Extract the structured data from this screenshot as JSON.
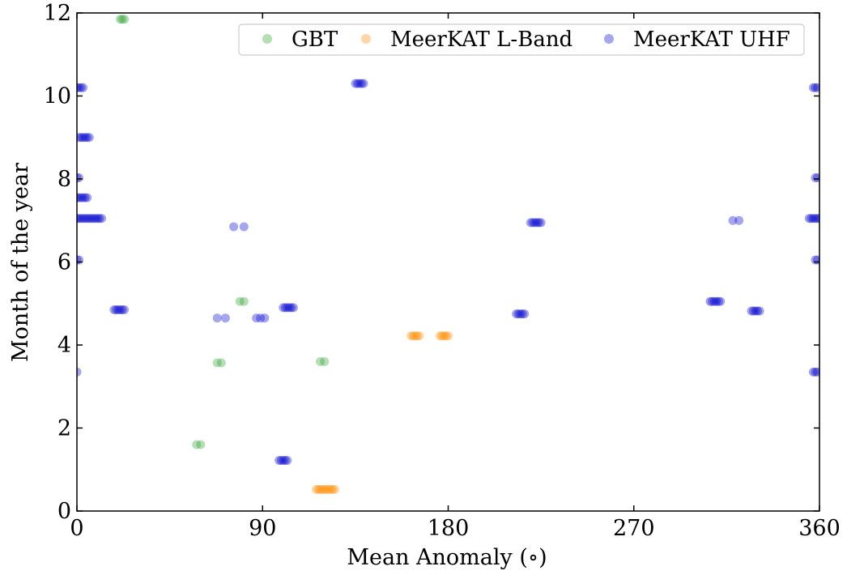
{
  "chart_data": {
    "type": "scatter",
    "xlabel": "Mean Anomaly ($^{\\circ}$)",
    "xlabel_display": "Mean Anomaly (∘)",
    "ylabel": "Month of the year",
    "xlim": [
      0,
      360
    ],
    "ylim": [
      0,
      12
    ],
    "xticks": [
      0,
      90,
      180,
      270,
      360
    ],
    "yticks": [
      0,
      2,
      4,
      6,
      8,
      10,
      12
    ],
    "grid": false,
    "legend_position": "top-right",
    "series": [
      {
        "name": "GBT",
        "color": "#2ca02c",
        "alpha": 0.35,
        "points": [
          [
            21,
            11.85
          ],
          [
            22,
            11.85
          ],
          [
            23,
            11.85
          ],
          [
            58,
            1.6
          ],
          [
            60,
            1.6
          ],
          [
            68,
            3.57
          ],
          [
            70,
            3.57
          ],
          [
            79,
            5.05
          ],
          [
            81,
            5.05
          ],
          [
            118,
            3.6
          ],
          [
            120,
            3.6
          ]
        ]
      },
      {
        "name": "MeerKAT L-Band",
        "color": "#ff8c00",
        "alpha": 0.35,
        "points": [
          [
            116,
            0.52
          ],
          [
            117,
            0.52
          ],
          [
            118,
            0.52
          ],
          [
            119,
            0.52
          ],
          [
            120,
            0.52
          ],
          [
            121,
            0.52
          ],
          [
            122,
            0.52
          ],
          [
            123,
            0.52
          ],
          [
            124,
            0.52
          ],
          [
            125,
            0.52
          ],
          [
            162,
            4.22
          ],
          [
            163,
            4.22
          ],
          [
            164,
            4.22
          ],
          [
            165,
            4.22
          ],
          [
            166,
            4.22
          ],
          [
            176,
            4.22
          ],
          [
            177,
            4.22
          ],
          [
            178,
            4.22
          ],
          [
            179,
            4.22
          ],
          [
            180,
            4.22
          ]
        ]
      },
      {
        "name": "MeerKAT UHF",
        "color": "#0000cd",
        "alpha": 0.35,
        "points": [
          [
            0,
            3.35
          ],
          [
            0,
            6.05
          ],
          [
            1,
            6.05
          ],
          [
            0,
            7.05
          ],
          [
            1,
            7.05
          ],
          [
            2,
            7.05
          ],
          [
            3,
            7.05
          ],
          [
            4,
            7.05
          ],
          [
            5,
            7.05
          ],
          [
            6,
            7.05
          ],
          [
            7,
            7.05
          ],
          [
            8,
            7.05
          ],
          [
            9,
            7.05
          ],
          [
            10,
            7.05
          ],
          [
            11,
            7.05
          ],
          [
            12,
            7.05
          ],
          [
            0,
            7.55
          ],
          [
            1,
            7.55
          ],
          [
            2,
            7.55
          ],
          [
            3,
            7.55
          ],
          [
            4,
            7.55
          ],
          [
            5,
            7.55
          ],
          [
            0,
            8.03
          ],
          [
            1,
            8.03
          ],
          [
            1,
            9.0
          ],
          [
            2,
            9.0
          ],
          [
            3,
            9.0
          ],
          [
            4,
            9.0
          ],
          [
            5,
            9.0
          ],
          [
            6,
            9.0
          ],
          [
            0,
            10.2
          ],
          [
            1,
            10.2
          ],
          [
            2,
            10.2
          ],
          [
            3,
            10.2
          ],
          [
            18,
            4.85
          ],
          [
            19,
            4.85
          ],
          [
            20,
            4.85
          ],
          [
            21,
            4.85
          ],
          [
            22,
            4.85
          ],
          [
            23,
            4.85
          ],
          [
            68,
            4.65
          ],
          [
            72,
            4.65
          ],
          [
            76,
            6.85
          ],
          [
            81,
            6.85
          ],
          [
            87,
            4.65
          ],
          [
            89,
            4.65
          ],
          [
            91,
            4.65
          ],
          [
            98,
            1.22
          ],
          [
            99,
            1.22
          ],
          [
            100,
            1.22
          ],
          [
            101,
            1.22
          ],
          [
            102,
            1.22
          ],
          [
            100,
            4.9
          ],
          [
            101,
            4.9
          ],
          [
            102,
            4.9
          ],
          [
            103,
            4.9
          ],
          [
            104,
            4.9
          ],
          [
            105,
            4.9
          ],
          [
            135,
            10.3
          ],
          [
            136,
            10.3
          ],
          [
            137,
            10.3
          ],
          [
            138,
            10.3
          ],
          [
            139,
            10.3
          ],
          [
            213,
            4.75
          ],
          [
            214,
            4.75
          ],
          [
            215,
            4.75
          ],
          [
            216,
            4.75
          ],
          [
            217,
            4.75
          ],
          [
            220,
            6.95
          ],
          [
            221,
            6.95
          ],
          [
            222,
            6.95
          ],
          [
            223,
            6.95
          ],
          [
            224,
            6.95
          ],
          [
            225,
            6.95
          ],
          [
            307,
            5.05
          ],
          [
            308,
            5.05
          ],
          [
            309,
            5.05
          ],
          [
            310,
            5.05
          ],
          [
            311,
            5.05
          ],
          [
            312,
            5.05
          ],
          [
            318,
            7.0
          ],
          [
            321,
            7.0
          ],
          [
            327,
            4.82
          ],
          [
            328,
            4.82
          ],
          [
            329,
            4.82
          ],
          [
            330,
            4.82
          ],
          [
            331,
            4.82
          ],
          [
            355,
            7.05
          ],
          [
            356,
            7.05
          ],
          [
            357,
            7.05
          ],
          [
            358,
            7.05
          ],
          [
            359,
            7.05
          ],
          [
            360,
            7.05
          ],
          [
            357,
            3.35
          ],
          [
            358,
            3.35
          ],
          [
            359,
            3.35
          ],
          [
            358,
            6.05
          ],
          [
            359,
            6.05
          ],
          [
            358,
            8.03
          ],
          [
            359,
            8.03
          ],
          [
            357,
            10.2
          ],
          [
            358,
            10.2
          ],
          [
            359,
            10.2
          ]
        ]
      }
    ]
  }
}
